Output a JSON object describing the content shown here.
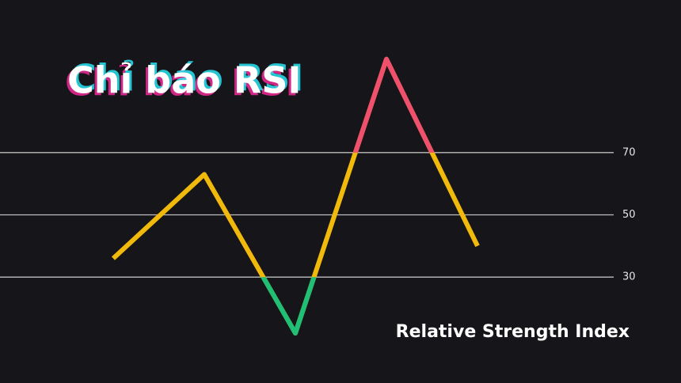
{
  "chart_data": {
    "type": "line",
    "title": "Chỉ báo RSI",
    "subtitle": "Relative Strength Index",
    "categories": [
      null,
      null,
      null,
      null,
      null
    ],
    "series": [
      {
        "values": [
          36,
          63,
          12,
          100,
          40
        ],
        "color": "#f0b90b"
      }
    ],
    "zone_colors": {
      "above": "#f0506e",
      "below": "#1fbf75"
    },
    "ylim": [
      -4,
      119
    ],
    "yticks": [
      30,
      50,
      70
    ],
    "grid": true
  }
}
